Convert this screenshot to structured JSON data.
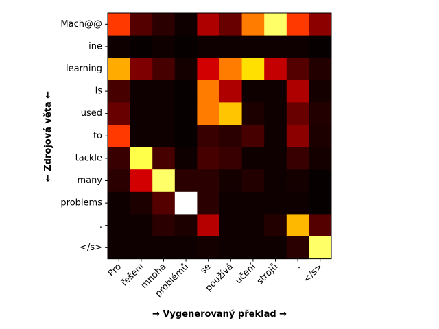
{
  "chart_data": {
    "type": "heatmap",
    "title": "",
    "xlabel": "→ Vygenerovaný překlad →",
    "ylabel": "← Zdrojová věta ←",
    "x_tokens": [
      "Pro",
      "řešení",
      "mnoha",
      "problémů",
      "se",
      "používá",
      "učení",
      "strojů",
      ".",
      "</s>"
    ],
    "y_tokens": [
      "Mach@@",
      "ine",
      "learning",
      "is",
      "used",
      "to",
      "tackle",
      "many",
      "problems",
      ".",
      "</s>"
    ],
    "colormap": "hot",
    "value_range": [
      0,
      1
    ],
    "values": [
      [
        0.45,
        0.12,
        0.06,
        0.02,
        0.25,
        0.15,
        0.55,
        0.85,
        0.45,
        0.2
      ],
      [
        0.02,
        0.01,
        0.02,
        0.01,
        0.02,
        0.02,
        0.02,
        0.02,
        0.02,
        0.01
      ],
      [
        0.62,
        0.18,
        0.1,
        0.03,
        0.3,
        0.55,
        0.7,
        0.28,
        0.12,
        0.05
      ],
      [
        0.1,
        0.02,
        0.02,
        0.01,
        0.55,
        0.25,
        0.02,
        0.02,
        0.25,
        0.03
      ],
      [
        0.15,
        0.02,
        0.02,
        0.01,
        0.55,
        0.66,
        0.04,
        0.02,
        0.15,
        0.05
      ],
      [
        0.45,
        0.02,
        0.02,
        0.01,
        0.08,
        0.06,
        0.1,
        0.02,
        0.2,
        0.04
      ],
      [
        0.08,
        0.82,
        0.1,
        0.02,
        0.1,
        0.08,
        0.02,
        0.02,
        0.08,
        0.03
      ],
      [
        0.06,
        0.3,
        0.85,
        0.06,
        0.06,
        0.03,
        0.05,
        0.02,
        0.03,
        0.01
      ],
      [
        0.02,
        0.04,
        0.12,
        1.0,
        0.06,
        0.02,
        0.02,
        0.02,
        0.02,
        0.01
      ],
      [
        0.02,
        0.02,
        0.06,
        0.04,
        0.26,
        0.02,
        0.02,
        0.05,
        0.64,
        0.12
      ],
      [
        0.02,
        0.02,
        0.02,
        0.02,
        0.03,
        0.02,
        0.02,
        0.02,
        0.06,
        0.85
      ]
    ]
  }
}
